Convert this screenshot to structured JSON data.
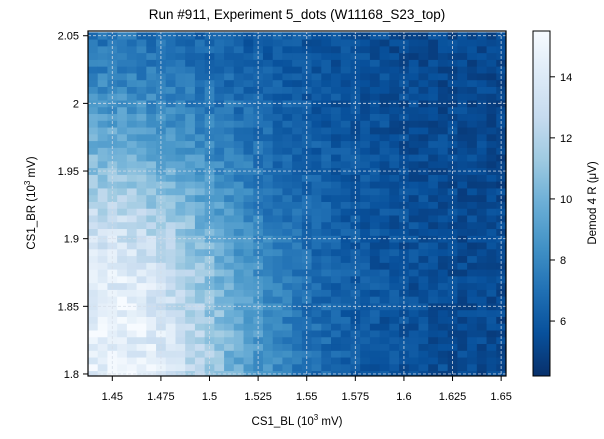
{
  "chart_data": {
    "type": "heatmap",
    "title": "Run #911, Experiment 5_dots (W11168_S23_top)",
    "xlabel": {
      "pre": "CS1_BL (10",
      "sup": "3",
      "post": " mV)"
    },
    "ylabel": {
      "pre": "CS1_BR (10",
      "sup": "3",
      "post": " mV)"
    },
    "colorbar_label": "Demod 4 R (μV)",
    "xlim": [
      1.4375,
      1.6525
    ],
    "ylim": [
      1.7985,
      2.0535
    ],
    "x_ticks": [
      1.45,
      1.475,
      1.5,
      1.525,
      1.55,
      1.575,
      1.6,
      1.625,
      1.65
    ],
    "x_tick_labels": [
      "1.45",
      "1.475",
      "1.5",
      "1.525",
      "1.55",
      "1.575",
      "1.6",
      "1.625",
      "1.65"
    ],
    "y_ticks": [
      1.8,
      1.85,
      1.9,
      1.95,
      2.0,
      2.05
    ],
    "y_tick_labels": [
      "1.8",
      "1.85",
      "1.9",
      "1.95",
      "2",
      "2.05"
    ],
    "colorbar_ticks": [
      6,
      8,
      10,
      12,
      14
    ],
    "colorbar_tick_labels": [
      "6",
      "8",
      "10",
      "12",
      "14"
    ],
    "clim": [
      4.2,
      15.5
    ],
    "grid": true,
    "colormap": "Blues_r",
    "grid_x": {
      "start": 1.44,
      "end": 1.65,
      "count": 43
    },
    "grid_y": {
      "start": 1.8,
      "end": 2.05,
      "count": 51
    },
    "value_model": {
      "background": 4.9,
      "peak": 14.6,
      "peak_at": [
        1.44,
        1.815
      ],
      "decay_x_span": 0.075,
      "decay_y_span": 0.16,
      "edge_sharpness": 3.2,
      "noise": 1.0
    }
  },
  "colors": {
    "colormap_stops": [
      "#08306b",
      "#08519c",
      "#2171b5",
      "#4292c6",
      "#6baed6",
      "#9ecae1",
      "#c6dbef",
      "#deebf7",
      "#f7fbff"
    ],
    "grid_line": "#d6dde8"
  }
}
